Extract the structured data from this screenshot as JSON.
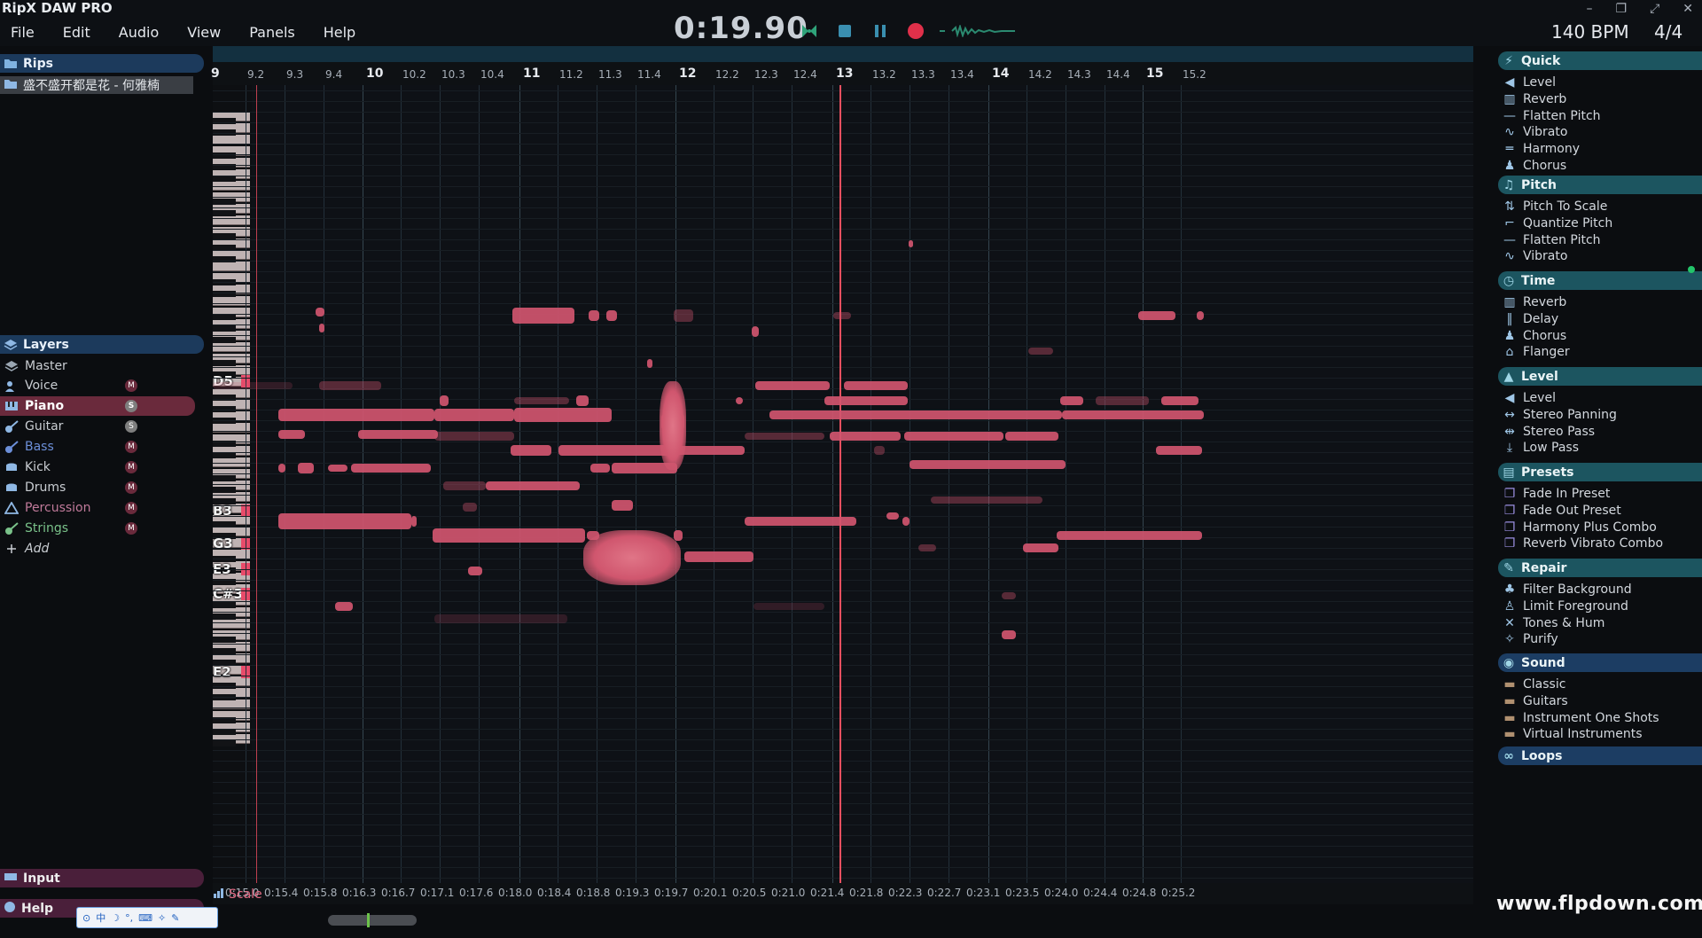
{
  "app": {
    "title": "RipX DAW PRO"
  },
  "menu": [
    "File",
    "Edit",
    "Audio",
    "View",
    "Panels",
    "Help"
  ],
  "transport": {
    "time": "0:19.90",
    "bpm": "140 BPM",
    "time_signature": "4/4"
  },
  "window_controls": [
    "–",
    "❐",
    "⤢",
    "✕"
  ],
  "rips": {
    "header": "Rips",
    "items": [
      "盛不盛开都是花 - 何雅楠"
    ]
  },
  "layers": {
    "header": "Layers",
    "items": [
      {
        "label": "Master",
        "badge": ""
      },
      {
        "label": "Voice",
        "badge": "M"
      },
      {
        "label": "Piano",
        "badge": "S",
        "selected": true
      },
      {
        "label": "Guitar",
        "badge": "S"
      },
      {
        "label": "Bass",
        "badge": "M"
      },
      {
        "label": "Kick",
        "badge": "M"
      },
      {
        "label": "Drums",
        "badge": "M"
      },
      {
        "label": "Percussion",
        "badge": "M"
      },
      {
        "label": "Strings",
        "badge": "M"
      },
      {
        "label": "Add",
        "badge": ""
      }
    ]
  },
  "bottom_left": {
    "input": "Input",
    "help": "Help"
  },
  "ruler": {
    "bars": [
      "9",
      "10",
      "11",
      "12",
      "13",
      "14",
      "15"
    ],
    "subs": [
      "9.2",
      "9.3",
      "9.4",
      "10.2",
      "10.3",
      "10.4",
      "11.2",
      "11.3",
      "11.4",
      "12.2",
      "12.3",
      "12.4",
      "13.2",
      "13.3",
      "13.4",
      "14.2",
      "14.3",
      "14.4",
      "15.2"
    ]
  },
  "keys": [
    "D5",
    "B3",
    "G3",
    "E3",
    "C#3",
    "E2"
  ],
  "time_axis": [
    "0:15.0",
    "0:15.4",
    "0:15.8",
    "0:16.3",
    "0:16.7",
    "0:17.1",
    "0:17.6",
    "0:18.0",
    "0:18.4",
    "0:18.8",
    "0:19.3",
    "0:19.7",
    "0:20.1",
    "0:20.5",
    "0:21.0",
    "0:21.4",
    "0:21.8",
    "0:22.3",
    "0:22.7",
    "0:23.1",
    "0:23.5",
    "0:24.0",
    "0:24.4",
    "0:24.8",
    "0:25.2"
  ],
  "scale_label": "Scale",
  "right_panel": {
    "quick": {
      "header": "Quick",
      "items": [
        "Level",
        "Reverb",
        "Flatten Pitch",
        "Vibrato",
        "Harmony",
        "Chorus"
      ]
    },
    "pitch": {
      "header": "Pitch",
      "items": [
        "Pitch To Scale",
        "Quantize Pitch",
        "Flatten Pitch",
        "Vibrato"
      ]
    },
    "time": {
      "header": "Time",
      "items": [
        "Reverb",
        "Delay",
        "Chorus",
        "Flanger"
      ]
    },
    "level": {
      "header": "Level",
      "items": [
        "Level",
        "Stereo Panning",
        "Stereo Pass",
        "Low Pass"
      ]
    },
    "presets": {
      "header": "Presets",
      "items": [
        "Fade In Preset",
        "Fade Out Preset",
        "Harmony Plus Combo",
        "Reverb Vibrato Combo"
      ]
    },
    "repair": {
      "header": "Repair",
      "items": [
        "Filter Background",
        "Limit Foreground",
        "Tones & Hum",
        "Purify"
      ]
    },
    "sound": {
      "header": "Sound",
      "items": [
        "Classic",
        "Guitars",
        "Instrument One Shots",
        "Virtual Instruments"
      ]
    },
    "loops": {
      "header": "Loops"
    }
  },
  "watermark": "www.flpdown.com",
  "colors": {
    "note": "#d0556f",
    "accent_blue": "#1c3a5c",
    "accent_teal": "#1c5560",
    "playhead": "#e85060",
    "layer_selected": "#6a2a3c"
  }
}
